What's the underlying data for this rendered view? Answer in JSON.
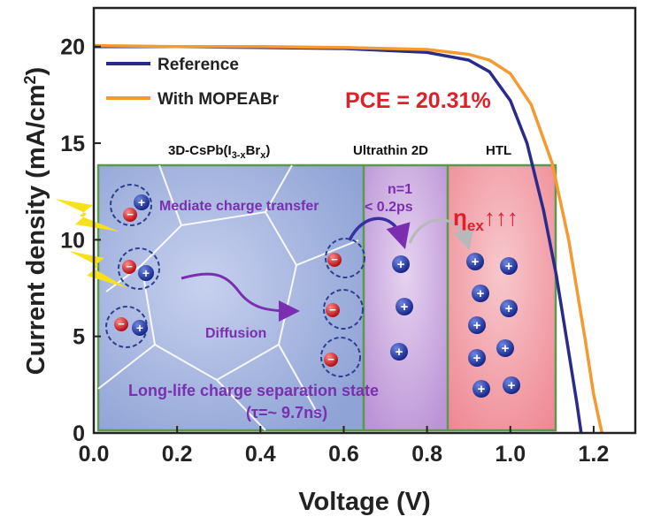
{
  "chart_data": {
    "type": "line",
    "xlabel": "Voltage (V)",
    "ylabel": "Current density (mA/cm²)",
    "xlim": [
      0.0,
      1.3
    ],
    "ylim": [
      0,
      22
    ],
    "xticks": [
      "0.0",
      "0.2",
      "0.4",
      "0.6",
      "0.8",
      "1.0",
      "1.2"
    ],
    "yticks": [
      "0",
      "5",
      "10",
      "15",
      "20"
    ],
    "grid": false,
    "legend_position": "top-left",
    "series": [
      {
        "name": "Reference",
        "color": "#2a2a8a",
        "x": [
          0.0,
          0.2,
          0.4,
          0.6,
          0.8,
          0.9,
          0.95,
          1.0,
          1.04,
          1.08,
          1.11,
          1.14,
          1.16,
          1.17
        ],
        "y": [
          20.0,
          20.0,
          19.95,
          19.9,
          19.7,
          19.3,
          18.7,
          17.2,
          15.0,
          11.5,
          8.2,
          4.2,
          1.5,
          0.0
        ]
      },
      {
        "name": "With MOPEABr",
        "color": "#f59a2e",
        "x": [
          0.0,
          0.2,
          0.4,
          0.6,
          0.8,
          0.9,
          0.95,
          1.0,
          1.05,
          1.1,
          1.14,
          1.18,
          1.2,
          1.22
        ],
        "y": [
          20.05,
          20.0,
          20.0,
          19.95,
          19.85,
          19.6,
          19.3,
          18.6,
          17.0,
          14.0,
          10.0,
          4.8,
          2.0,
          0.0
        ]
      }
    ],
    "annotations": {
      "pce": "PCE = 20.31%"
    }
  },
  "inset": {
    "region_3d": "3D-CsPb(I3-xBrx)",
    "region_2d": "Ultrathin 2D",
    "region_htl": "HTL",
    "mediate": "Mediate charge transfer",
    "n_label": "n=1",
    "time_label": "< 0.2ps",
    "diffusion": "Diffusion",
    "eta": "ηex↑↑↑",
    "separation": "Long-life charge separation state",
    "tau": "(τ=~ 9.7ns)"
  },
  "colors": {
    "frame_green": "#5b9a4c",
    "pce_red": "#e11f2a",
    "purple_text": "#7b2fb0",
    "blue_bg": "#9fb1dd",
    "purple_bg": "#c9a6dd",
    "red_bg": "#f19aa3",
    "electron": "#d32b2b",
    "hole": "#1f3aa8"
  }
}
